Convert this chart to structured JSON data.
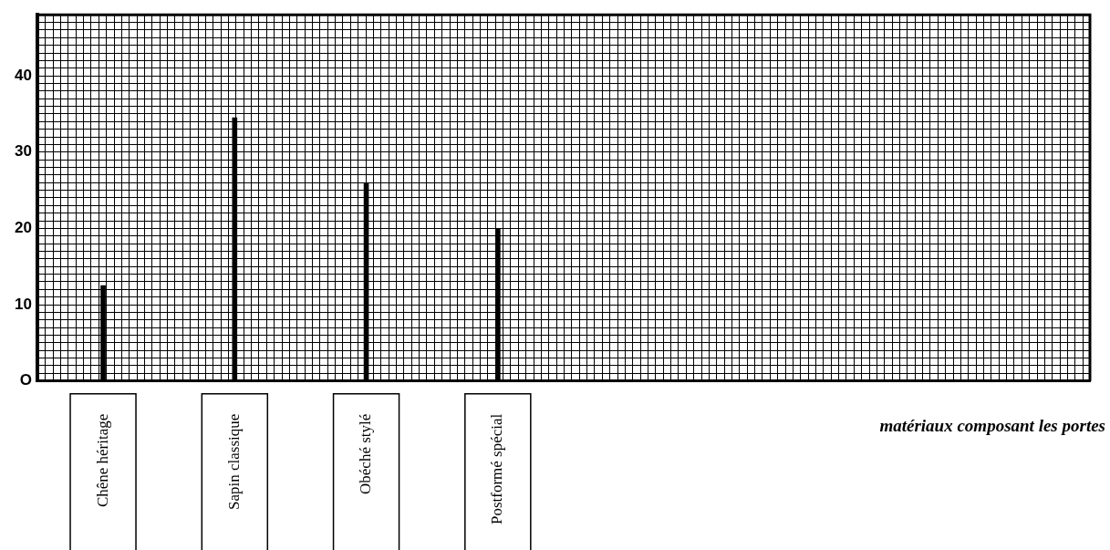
{
  "chart_data": {
    "type": "bar",
    "xlabel": "matériaux composant les portes",
    "categories": [
      "Chêne héritage",
      "Sapin classique",
      "Obéché stylé",
      "Postformé spécial",
      null,
      null,
      null,
      null
    ],
    "values": [
      12.5,
      34.5,
      26,
      20,
      null,
      null,
      null,
      null
    ],
    "color": "#000000",
    "ylim": [
      0,
      48
    ],
    "yticks": [
      {
        "value": 0,
        "label": "O"
      },
      {
        "value": 1,
        "label": null
      },
      {
        "value": 2,
        "label": null
      },
      {
        "value": 3,
        "label": null
      },
      {
        "value": 4,
        "label": null
      },
      {
        "value": 5,
        "label": null
      },
      {
        "value": 6,
        "label": null
      },
      {
        "value": 7,
        "label": null
      },
      {
        "value": 8,
        "label": null
      },
      {
        "value": 9,
        "label": null
      },
      10,
      {
        "value": 11,
        "label": null
      },
      {
        "value": 12,
        "label": null
      },
      {
        "value": 13,
        "label": null
      },
      {
        "value": 14,
        "label": null
      },
      {
        "value": 15,
        "label": null
      },
      {
        "value": 16,
        "label": null
      },
      {
        "value": 17,
        "label": null
      },
      {
        "value": 18,
        "label": null
      },
      {
        "value": 19,
        "label": null
      },
      20,
      {
        "value": 21,
        "label": null
      },
      {
        "value": 22,
        "label": null
      },
      {
        "value": 23,
        "label": null
      },
      {
        "value": 24,
        "label": null
      },
      {
        "value": 25,
        "label": null
      },
      {
        "value": 26,
        "label": null
      },
      {
        "value": 27,
        "label": null
      },
      {
        "value": 28,
        "label": null
      },
      {
        "value": 29,
        "label": null
      },
      30,
      {
        "value": 31,
        "label": null
      },
      {
        "value": 32,
        "label": null
      },
      {
        "value": 33,
        "label": null
      },
      {
        "value": 34,
        "label": null
      },
      {
        "value": 35,
        "label": null
      },
      {
        "value": 36,
        "label": null
      },
      {
        "value": 37,
        "label": null
      },
      {
        "value": 38,
        "label": null
      },
      {
        "value": 39,
        "label": null
      },
      40,
      {
        "value": 41,
        "label": null
      },
      {
        "value": 42,
        "label": null
      },
      {
        "value": 43,
        "label": null
      },
      {
        "value": 44,
        "label": null
      },
      {
        "value": 45,
        "label": null
      },
      {
        "value": 46,
        "label": null
      },
      {
        "value": 47,
        "label": null
      },
      {
        "value": 48,
        "label": null
      }
    ],
    "grid": true
  }
}
